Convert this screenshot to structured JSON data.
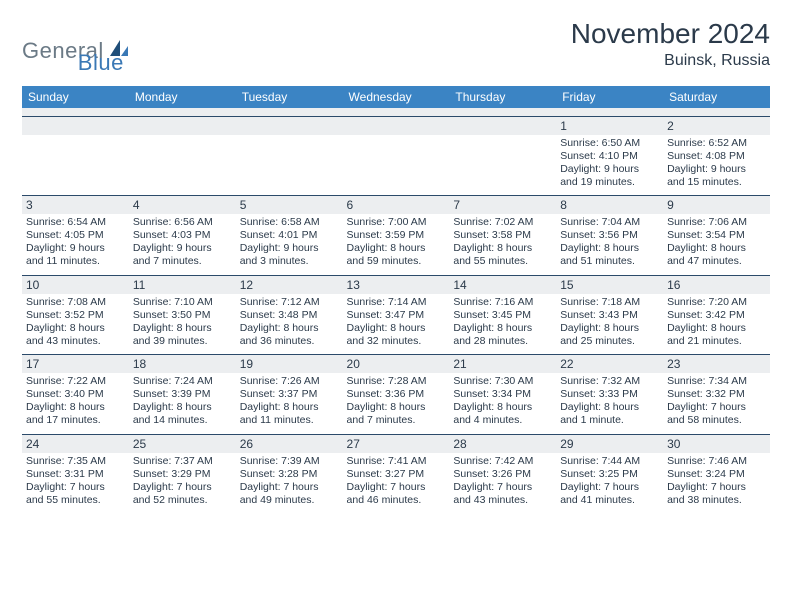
{
  "brand": {
    "general": "General",
    "blue": "Blue"
  },
  "title": "November 2024",
  "location": "Buinsk, Russia",
  "colors": {
    "header_bg": "#3b84c4",
    "header_text": "#ffffff",
    "daynum_bg": "#eceef0",
    "text": "#2b3a4a",
    "rule": "#2b4a6a",
    "logo_gray": "#6b7a86",
    "logo_blue": "#3a78b5",
    "logo_dark": "#1f4e79"
  },
  "day_labels": [
    "Sunday",
    "Monday",
    "Tuesday",
    "Wednesday",
    "Thursday",
    "Friday",
    "Saturday"
  ],
  "weeks": [
    [
      null,
      null,
      null,
      null,
      null,
      {
        "n": "1",
        "sr": "Sunrise: 6:50 AM",
        "ss": "Sunset: 4:10 PM",
        "d1": "Daylight: 9 hours",
        "d2": "and 19 minutes."
      },
      {
        "n": "2",
        "sr": "Sunrise: 6:52 AM",
        "ss": "Sunset: 4:08 PM",
        "d1": "Daylight: 9 hours",
        "d2": "and 15 minutes."
      }
    ],
    [
      {
        "n": "3",
        "sr": "Sunrise: 6:54 AM",
        "ss": "Sunset: 4:05 PM",
        "d1": "Daylight: 9 hours",
        "d2": "and 11 minutes."
      },
      {
        "n": "4",
        "sr": "Sunrise: 6:56 AM",
        "ss": "Sunset: 4:03 PM",
        "d1": "Daylight: 9 hours",
        "d2": "and 7 minutes."
      },
      {
        "n": "5",
        "sr": "Sunrise: 6:58 AM",
        "ss": "Sunset: 4:01 PM",
        "d1": "Daylight: 9 hours",
        "d2": "and 3 minutes."
      },
      {
        "n": "6",
        "sr": "Sunrise: 7:00 AM",
        "ss": "Sunset: 3:59 PM",
        "d1": "Daylight: 8 hours",
        "d2": "and 59 minutes."
      },
      {
        "n": "7",
        "sr": "Sunrise: 7:02 AM",
        "ss": "Sunset: 3:58 PM",
        "d1": "Daylight: 8 hours",
        "d2": "and 55 minutes."
      },
      {
        "n": "8",
        "sr": "Sunrise: 7:04 AM",
        "ss": "Sunset: 3:56 PM",
        "d1": "Daylight: 8 hours",
        "d2": "and 51 minutes."
      },
      {
        "n": "9",
        "sr": "Sunrise: 7:06 AM",
        "ss": "Sunset: 3:54 PM",
        "d1": "Daylight: 8 hours",
        "d2": "and 47 minutes."
      }
    ],
    [
      {
        "n": "10",
        "sr": "Sunrise: 7:08 AM",
        "ss": "Sunset: 3:52 PM",
        "d1": "Daylight: 8 hours",
        "d2": "and 43 minutes."
      },
      {
        "n": "11",
        "sr": "Sunrise: 7:10 AM",
        "ss": "Sunset: 3:50 PM",
        "d1": "Daylight: 8 hours",
        "d2": "and 39 minutes."
      },
      {
        "n": "12",
        "sr": "Sunrise: 7:12 AM",
        "ss": "Sunset: 3:48 PM",
        "d1": "Daylight: 8 hours",
        "d2": "and 36 minutes."
      },
      {
        "n": "13",
        "sr": "Sunrise: 7:14 AM",
        "ss": "Sunset: 3:47 PM",
        "d1": "Daylight: 8 hours",
        "d2": "and 32 minutes."
      },
      {
        "n": "14",
        "sr": "Sunrise: 7:16 AM",
        "ss": "Sunset: 3:45 PM",
        "d1": "Daylight: 8 hours",
        "d2": "and 28 minutes."
      },
      {
        "n": "15",
        "sr": "Sunrise: 7:18 AM",
        "ss": "Sunset: 3:43 PM",
        "d1": "Daylight: 8 hours",
        "d2": "and 25 minutes."
      },
      {
        "n": "16",
        "sr": "Sunrise: 7:20 AM",
        "ss": "Sunset: 3:42 PM",
        "d1": "Daylight: 8 hours",
        "d2": "and 21 minutes."
      }
    ],
    [
      {
        "n": "17",
        "sr": "Sunrise: 7:22 AM",
        "ss": "Sunset: 3:40 PM",
        "d1": "Daylight: 8 hours",
        "d2": "and 17 minutes."
      },
      {
        "n": "18",
        "sr": "Sunrise: 7:24 AM",
        "ss": "Sunset: 3:39 PM",
        "d1": "Daylight: 8 hours",
        "d2": "and 14 minutes."
      },
      {
        "n": "19",
        "sr": "Sunrise: 7:26 AM",
        "ss": "Sunset: 3:37 PM",
        "d1": "Daylight: 8 hours",
        "d2": "and 11 minutes."
      },
      {
        "n": "20",
        "sr": "Sunrise: 7:28 AM",
        "ss": "Sunset: 3:36 PM",
        "d1": "Daylight: 8 hours",
        "d2": "and 7 minutes."
      },
      {
        "n": "21",
        "sr": "Sunrise: 7:30 AM",
        "ss": "Sunset: 3:34 PM",
        "d1": "Daylight: 8 hours",
        "d2": "and 4 minutes."
      },
      {
        "n": "22",
        "sr": "Sunrise: 7:32 AM",
        "ss": "Sunset: 3:33 PM",
        "d1": "Daylight: 8 hours",
        "d2": "and 1 minute."
      },
      {
        "n": "23",
        "sr": "Sunrise: 7:34 AM",
        "ss": "Sunset: 3:32 PM",
        "d1": "Daylight: 7 hours",
        "d2": "and 58 minutes."
      }
    ],
    [
      {
        "n": "24",
        "sr": "Sunrise: 7:35 AM",
        "ss": "Sunset: 3:31 PM",
        "d1": "Daylight: 7 hours",
        "d2": "and 55 minutes."
      },
      {
        "n": "25",
        "sr": "Sunrise: 7:37 AM",
        "ss": "Sunset: 3:29 PM",
        "d1": "Daylight: 7 hours",
        "d2": "and 52 minutes."
      },
      {
        "n": "26",
        "sr": "Sunrise: 7:39 AM",
        "ss": "Sunset: 3:28 PM",
        "d1": "Daylight: 7 hours",
        "d2": "and 49 minutes."
      },
      {
        "n": "27",
        "sr": "Sunrise: 7:41 AM",
        "ss": "Sunset: 3:27 PM",
        "d1": "Daylight: 7 hours",
        "d2": "and 46 minutes."
      },
      {
        "n": "28",
        "sr": "Sunrise: 7:42 AM",
        "ss": "Sunset: 3:26 PM",
        "d1": "Daylight: 7 hours",
        "d2": "and 43 minutes."
      },
      {
        "n": "29",
        "sr": "Sunrise: 7:44 AM",
        "ss": "Sunset: 3:25 PM",
        "d1": "Daylight: 7 hours",
        "d2": "and 41 minutes."
      },
      {
        "n": "30",
        "sr": "Sunrise: 7:46 AM",
        "ss": "Sunset: 3:24 PM",
        "d1": "Daylight: 7 hours",
        "d2": "and 38 minutes."
      }
    ]
  ]
}
